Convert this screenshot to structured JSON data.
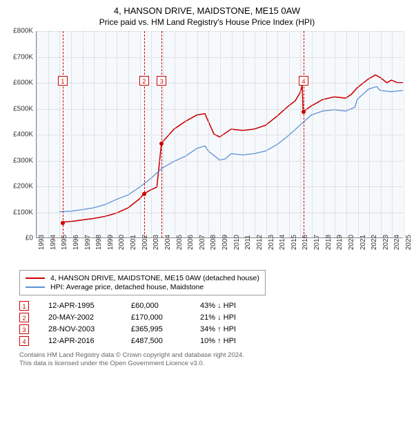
{
  "title": "4, HANSON DRIVE, MAIDSTONE, ME15 0AW",
  "subtitle": "Price paid vs. HM Land Registry's House Price Index (HPI)",
  "chart": {
    "type": "line",
    "background_color": "#f6f9fc",
    "grid_color": "#c8c8d0",
    "axis_color": "#888888",
    "ylim": [
      0,
      800000
    ],
    "ytick_step": 100000,
    "yticks": [
      "£0",
      "£100K",
      "£200K",
      "£300K",
      "£400K",
      "£500K",
      "£600K",
      "£700K",
      "£800K"
    ],
    "xlim": [
      1993,
      2025
    ],
    "xticks": [
      1993,
      1994,
      1995,
      1996,
      1997,
      1998,
      1999,
      2000,
      2001,
      2002,
      2003,
      2004,
      2005,
      2006,
      2007,
      2008,
      2009,
      2010,
      2011,
      2012,
      2013,
      2014,
      2015,
      2016,
      2017,
      2018,
      2019,
      2020,
      2021,
      2022,
      2023,
      2024,
      2025
    ],
    "label_fontsize": 10,
    "series": [
      {
        "name": "price_paid",
        "label": "4, HANSON DRIVE, MAIDSTONE, ME15 0AW (detached house)",
        "color": "#cc0000",
        "line_width": 1.6,
        "data": [
          [
            1995.28,
            60000
          ],
          [
            1996,
            62000
          ],
          [
            1997,
            68000
          ],
          [
            1998,
            74000
          ],
          [
            1999,
            82000
          ],
          [
            2000,
            95000
          ],
          [
            2001,
            115000
          ],
          [
            2002,
            150000
          ],
          [
            2002.38,
            170000
          ],
          [
            2002.6,
            175000
          ],
          [
            2003,
            185000
          ],
          [
            2003.5,
            195000
          ],
          [
            2003.91,
            365995
          ],
          [
            2004.5,
            395000
          ],
          [
            2005,
            420000
          ],
          [
            2006,
            450000
          ],
          [
            2007,
            475000
          ],
          [
            2007.7,
            480000
          ],
          [
            2008,
            450000
          ],
          [
            2008.5,
            400000
          ],
          [
            2009,
            390000
          ],
          [
            2009.5,
            405000
          ],
          [
            2010,
            420000
          ],
          [
            2011,
            415000
          ],
          [
            2012,
            420000
          ],
          [
            2013,
            435000
          ],
          [
            2014,
            470000
          ],
          [
            2015,
            510000
          ],
          [
            2015.6,
            530000
          ],
          [
            2016,
            560000
          ],
          [
            2016.2,
            590000
          ],
          [
            2016.28,
            487500
          ],
          [
            2017,
            510000
          ],
          [
            2018,
            535000
          ],
          [
            2019,
            545000
          ],
          [
            2020,
            540000
          ],
          [
            2020.5,
            555000
          ],
          [
            2021,
            580000
          ],
          [
            2022,
            615000
          ],
          [
            2022.6,
            630000
          ],
          [
            2023,
            620000
          ],
          [
            2023.6,
            600000
          ],
          [
            2024,
            610000
          ],
          [
            2024.5,
            600000
          ],
          [
            2025,
            600000
          ]
        ]
      },
      {
        "name": "hpi",
        "label": "HPI: Average price, detached house, Maidstone",
        "color": "#5b8fd6",
        "line_width": 1.3,
        "data": [
          [
            1995,
            100000
          ],
          [
            1996,
            102000
          ],
          [
            1997,
            108000
          ],
          [
            1998,
            115000
          ],
          [
            1999,
            128000
          ],
          [
            2000,
            148000
          ],
          [
            2001,
            165000
          ],
          [
            2002,
            195000
          ],
          [
            2003,
            230000
          ],
          [
            2004,
            270000
          ],
          [
            2005,
            295000
          ],
          [
            2006,
            315000
          ],
          [
            2007,
            345000
          ],
          [
            2007.7,
            355000
          ],
          [
            2008,
            335000
          ],
          [
            2009,
            300000
          ],
          [
            2009.5,
            305000
          ],
          [
            2010,
            325000
          ],
          [
            2011,
            320000
          ],
          [
            2012,
            325000
          ],
          [
            2013,
            335000
          ],
          [
            2014,
            360000
          ],
          [
            2015,
            395000
          ],
          [
            2016,
            435000
          ],
          [
            2016.5,
            455000
          ],
          [
            2017,
            475000
          ],
          [
            2018,
            490000
          ],
          [
            2019,
            495000
          ],
          [
            2020,
            490000
          ],
          [
            2020.8,
            505000
          ],
          [
            2021,
            535000
          ],
          [
            2022,
            575000
          ],
          [
            2022.7,
            585000
          ],
          [
            2023,
            570000
          ],
          [
            2024,
            565000
          ],
          [
            2025,
            570000
          ]
        ]
      }
    ],
    "markers": [
      {
        "id": "1",
        "x": 1995.28,
        "box_y": 65
      },
      {
        "id": "2",
        "x": 2002.38,
        "box_y": 65
      },
      {
        "id": "3",
        "x": 2003.91,
        "box_y": 65
      },
      {
        "id": "4",
        "x": 2016.28,
        "box_y": 65
      }
    ],
    "sale_points": [
      {
        "x": 1995.28,
        "y": 60000
      },
      {
        "x": 2002.38,
        "y": 170000
      },
      {
        "x": 2003.91,
        "y": 365995
      },
      {
        "x": 2016.28,
        "y": 487500
      }
    ]
  },
  "legend": {
    "items": [
      {
        "color": "#cc0000",
        "label": "4, HANSON DRIVE, MAIDSTONE, ME15 0AW (detached house)"
      },
      {
        "color": "#5b8fd6",
        "label": "HPI: Average price, detached house, Maidstone"
      }
    ]
  },
  "sales": [
    {
      "id": "1",
      "date": "12-APR-1995",
      "price": "£60,000",
      "delta": "43% ↓ HPI",
      "arrow": "down"
    },
    {
      "id": "2",
      "date": "20-MAY-2002",
      "price": "£170,000",
      "delta": "21% ↓ HPI",
      "arrow": "down"
    },
    {
      "id": "3",
      "date": "28-NOV-2003",
      "price": "£365,995",
      "delta": "34% ↑ HPI",
      "arrow": "up"
    },
    {
      "id": "4",
      "date": "12-APR-2016",
      "price": "£487,500",
      "delta": "10% ↑ HPI",
      "arrow": "up"
    }
  ],
  "footer": {
    "line1": "Contains HM Land Registry data © Crown copyright and database right 2024.",
    "line2": "This data is licensed under the Open Government Licence v3.0."
  }
}
